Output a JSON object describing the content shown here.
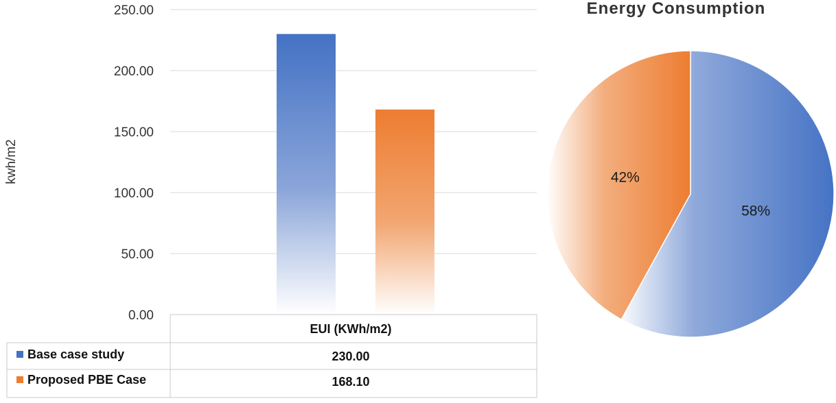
{
  "chart_data": [
    {
      "type": "bar",
      "title": "",
      "ylabel": "kwh/m2",
      "xlabel": "",
      "categories": [
        "EUI (KWh/m2)"
      ],
      "ylim": [
        0,
        250
      ],
      "yticks": [
        "0.00",
        "50.00",
        "100.00",
        "150.00",
        "200.00",
        "250.00"
      ],
      "grid": true,
      "series": [
        {
          "name": "Base case study",
          "values": [
            230.0
          ],
          "display": "230.00",
          "color": "#4472C4"
        },
        {
          "name": "Proposed PBE Case",
          "values": [
            168.1
          ],
          "display": "168.10",
          "color": "#ED7D31"
        }
      ],
      "data_table": true
    },
    {
      "type": "pie",
      "title": "Energy Consumption",
      "slices": [
        {
          "label": "58%",
          "value": 58,
          "color": "#4472C4"
        },
        {
          "label": "42%",
          "value": 42,
          "color": "#ED7D31"
        }
      ]
    }
  ]
}
